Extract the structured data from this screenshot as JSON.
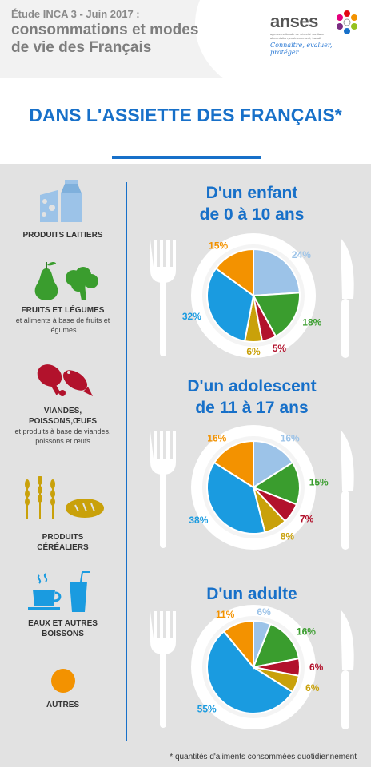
{
  "header": {
    "study": "Étude INCA 3 - Juin 2017 :",
    "title": "consommations et modes de vie des Français",
    "logo": {
      "name": "anses",
      "subtitle": "agence nationale de sécurité sanitaire alimentation, environnement, travail",
      "tagline": "Connaître, évaluer, protéger"
    }
  },
  "main_title": "DANS L'ASSIETTE DES FRANÇAIS*",
  "categories": [
    {
      "label": "PRODUITS LAITIERS",
      "sub": ""
    },
    {
      "label": "FRUITS ET LÉGUMES",
      "sub": "et aliments à base de fruits et légumes"
    },
    {
      "label": "VIANDES, POISSONS,ŒUFS",
      "sub": "et produits à base de viandes, poissons et œufs"
    },
    {
      "label": "PRODUITS CÉRÉALIERS",
      "sub": ""
    },
    {
      "label": "EAUX ET AUTRES BOISSONS",
      "sub": ""
    },
    {
      "label": "AUTRES",
      "sub": ""
    }
  ],
  "colors": {
    "produits_laitiers": "#9cc3e8",
    "fruits_legumes": "#3a9d2e",
    "viandes": "#b2122c",
    "cereales": "#c9a10a",
    "boissons": "#1a9be0",
    "autres": "#f39200",
    "brand_blue": "#1770c9"
  },
  "chart_data": [
    {
      "type": "pie",
      "title": "D'un enfant de 0 à 10 ans",
      "categories": [
        "Produits laitiers",
        "Fruits et légumes",
        "Viandes, poissons, œufs",
        "Produits céréaliers",
        "Eaux et autres boissons",
        "Autres"
      ],
      "values": [
        24,
        18,
        5,
        6,
        32,
        15
      ],
      "labels": [
        "24%",
        "18%",
        "5%",
        "6%",
        "32%",
        "15%"
      ]
    },
    {
      "type": "pie",
      "title": "D'un adolescent de 11 à 17 ans",
      "categories": [
        "Produits laitiers",
        "Fruits et légumes",
        "Viandes, poissons, œufs",
        "Produits céréaliers",
        "Eaux et autres boissons",
        "Autres"
      ],
      "values": [
        16,
        15,
        7,
        8,
        38,
        16
      ],
      "labels": [
        "16%",
        "15%",
        "7%",
        "8%",
        "38%",
        "16%"
      ]
    },
    {
      "type": "pie",
      "title": "D'un adulte",
      "categories": [
        "Produits laitiers",
        "Fruits et légumes",
        "Viandes, poissons, œufs",
        "Produits céréaliers",
        "Eaux et autres boissons",
        "Autres"
      ],
      "values": [
        6,
        16,
        6,
        6,
        55,
        11
      ],
      "labels": [
        "6%",
        "16%",
        "6%",
        "6%",
        "55%",
        "11%"
      ]
    }
  ],
  "sections": [
    {
      "title_line1": "D'un enfant",
      "title_line2": "de 0 à 10 ans"
    },
    {
      "title_line1": "D'un adolescent",
      "title_line2": "de 11 à 17 ans"
    },
    {
      "title_line1": "D'un adulte",
      "title_line2": ""
    }
  ],
  "footnote": "* quantités d'aliments consommées quotidiennement"
}
